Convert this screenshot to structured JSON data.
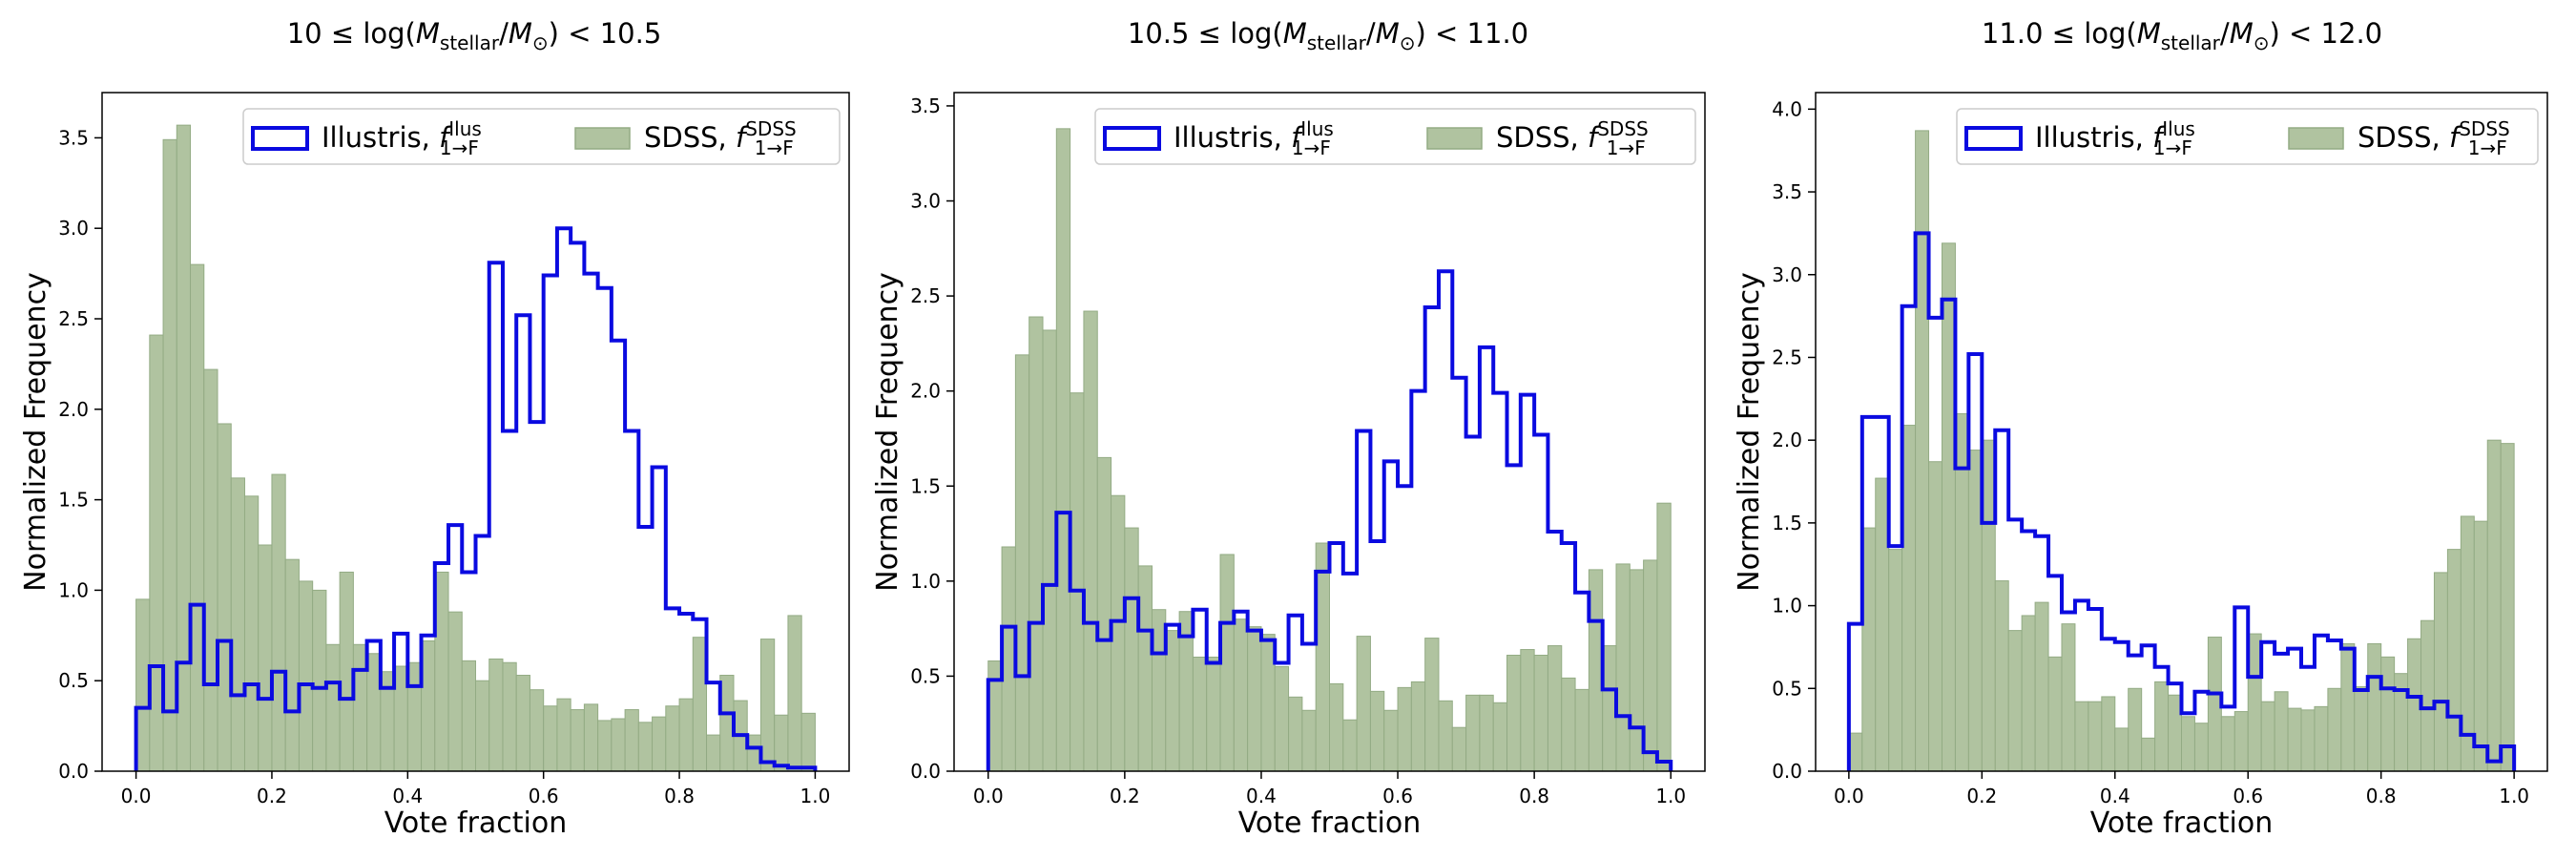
{
  "figure": {
    "xlabel": "Vote fraction",
    "ylabel": "Normalized Frequency"
  },
  "colors": {
    "illustris": "#0a0ae0",
    "sdss_fill": "#b0c3a0",
    "sdss_edge": "#93ab84"
  },
  "chart_data": [
    {
      "type": "histogram",
      "title_parts": {
        "lo": "10",
        "hi": "10.5",
        "inner": "log(M",
        "sub1": "stellar",
        "mid": "/M",
        "sub2": "⊙",
        "close": ")"
      },
      "title": "10 ≤ log(M_stellar/M_⊙) < 10.5",
      "xlabel": "Vote fraction",
      "ylabel": "Normalized Frequency",
      "xlim": [
        -0.05,
        1.05
      ],
      "ylim": [
        0,
        3.75
      ],
      "xticks": [
        "0.0",
        "0.2",
        "0.4",
        "0.6",
        "0.8",
        "1.0"
      ],
      "yticks": [
        "0.0",
        "0.5",
        "1.0",
        "1.5",
        "2.0",
        "2.5",
        "3.0",
        "3.5"
      ],
      "series": [
        {
          "name": "Illustris, f_1→F^Ilus",
          "style": "step",
          "edges": [
            0.0,
            0.02,
            0.04,
            0.06,
            0.08,
            0.1,
            0.12,
            0.14,
            0.16,
            0.18,
            0.2,
            0.22,
            0.24,
            0.26,
            0.28,
            0.3,
            0.32,
            0.34,
            0.36,
            0.38,
            0.4,
            0.42,
            0.44,
            0.46,
            0.48,
            0.5,
            0.52,
            0.54,
            0.56,
            0.58,
            0.6,
            0.62,
            0.64,
            0.66,
            0.68,
            0.7,
            0.72,
            0.74,
            0.76,
            0.78,
            0.8,
            0.82,
            0.84,
            0.86,
            0.88,
            0.9,
            0.92,
            0.94,
            0.96,
            0.98,
            1.0
          ],
          "values": [
            0.35,
            0.58,
            0.33,
            0.6,
            0.92,
            0.48,
            0.72,
            0.42,
            0.48,
            0.4,
            0.55,
            0.33,
            0.48,
            0.46,
            0.49,
            0.4,
            0.56,
            0.72,
            0.46,
            0.76,
            0.47,
            0.75,
            1.15,
            1.36,
            1.1,
            1.3,
            2.81,
            1.88,
            2.52,
            1.93,
            2.74,
            3.0,
            2.92,
            2.75,
            2.67,
            2.38,
            1.88,
            1.35,
            1.68,
            0.9,
            0.87,
            0.84,
            0.49,
            0.32,
            0.2,
            0.13,
            0.05,
            0.03,
            0.02,
            0.02
          ]
        },
        {
          "name": "SDSS, f_1→F^SDSS",
          "style": "filled",
          "edges": [
            0.0,
            0.02,
            0.04,
            0.06,
            0.08,
            0.1,
            0.12,
            0.14,
            0.16,
            0.18,
            0.2,
            0.22,
            0.24,
            0.26,
            0.28,
            0.3,
            0.32,
            0.34,
            0.36,
            0.38,
            0.4,
            0.42,
            0.44,
            0.46,
            0.48,
            0.5,
            0.52,
            0.54,
            0.56,
            0.58,
            0.6,
            0.62,
            0.64,
            0.66,
            0.68,
            0.7,
            0.72,
            0.74,
            0.76,
            0.78,
            0.8,
            0.82,
            0.84,
            0.86,
            0.88,
            0.9,
            0.92,
            0.94,
            0.96,
            0.98,
            1.0
          ],
          "values": [
            0.95,
            2.41,
            3.49,
            3.57,
            2.8,
            2.22,
            1.92,
            1.62,
            1.52,
            1.25,
            1.64,
            1.17,
            1.05,
            1.0,
            0.7,
            1.1,
            0.7,
            0.65,
            0.55,
            0.58,
            0.6,
            0.72,
            1.1,
            0.88,
            0.61,
            0.5,
            0.62,
            0.6,
            0.53,
            0.45,
            0.36,
            0.4,
            0.34,
            0.37,
            0.28,
            0.29,
            0.34,
            0.27,
            0.3,
            0.36,
            0.4,
            0.74,
            0.2,
            0.53,
            0.39,
            0.2,
            0.73,
            0.31,
            0.86,
            0.32
          ]
        }
      ]
    },
    {
      "type": "histogram",
      "title_parts": {
        "lo": "10.5",
        "hi": "11.0",
        "inner": "log(M",
        "sub1": "stellar",
        "mid": "/M",
        "sub2": "⊙",
        "close": ")"
      },
      "title": "10.5 ≤ log(M_stellar/M_⊙) < 11.0",
      "xlabel": "Vote fraction",
      "ylabel": "Normalized Frequency",
      "xlim": [
        -0.05,
        1.05
      ],
      "ylim": [
        0,
        3.57
      ],
      "xticks": [
        "0.0",
        "0.2",
        "0.4",
        "0.6",
        "0.8",
        "1.0"
      ],
      "yticks": [
        "0.0",
        "0.5",
        "1.0",
        "1.5",
        "2.0",
        "2.5",
        "3.0",
        "3.5"
      ],
      "series": [
        {
          "name": "Illustris, f_1→F^Ilus",
          "style": "step",
          "edges": [
            0.0,
            0.02,
            0.04,
            0.06,
            0.08,
            0.1,
            0.12,
            0.14,
            0.16,
            0.18,
            0.2,
            0.22,
            0.24,
            0.26,
            0.28,
            0.3,
            0.32,
            0.34,
            0.36,
            0.38,
            0.4,
            0.42,
            0.44,
            0.46,
            0.48,
            0.5,
            0.52,
            0.54,
            0.56,
            0.58,
            0.6,
            0.62,
            0.64,
            0.66,
            0.68,
            0.7,
            0.72,
            0.74,
            0.76,
            0.78,
            0.8,
            0.82,
            0.84,
            0.86,
            0.88,
            0.9,
            0.92,
            0.94,
            0.96,
            0.98,
            1.0
          ],
          "values": [
            0.48,
            0.76,
            0.5,
            0.78,
            0.98,
            1.36,
            0.95,
            0.78,
            0.69,
            0.79,
            0.91,
            0.74,
            0.62,
            0.77,
            0.71,
            0.85,
            0.57,
            0.78,
            0.84,
            0.74,
            0.69,
            0.57,
            0.82,
            0.67,
            1.05,
            1.2,
            1.04,
            1.79,
            1.21,
            1.63,
            1.5,
            2.0,
            2.44,
            2.63,
            2.07,
            1.76,
            2.23,
            1.99,
            1.61,
            1.98,
            1.77,
            1.26,
            1.2,
            0.94,
            0.79,
            0.43,
            0.29,
            0.23,
            0.1,
            0.05
          ]
        },
        {
          "name": "SDSS, f_1→F^SDSS",
          "style": "filled",
          "edges": [
            0.0,
            0.02,
            0.04,
            0.06,
            0.08,
            0.1,
            0.12,
            0.14,
            0.16,
            0.18,
            0.2,
            0.22,
            0.24,
            0.26,
            0.28,
            0.3,
            0.32,
            0.34,
            0.36,
            0.38,
            0.4,
            0.42,
            0.44,
            0.46,
            0.48,
            0.5,
            0.52,
            0.54,
            0.56,
            0.58,
            0.6,
            0.62,
            0.64,
            0.66,
            0.68,
            0.7,
            0.72,
            0.74,
            0.76,
            0.78,
            0.8,
            0.82,
            0.84,
            0.86,
            0.88,
            0.9,
            0.92,
            0.94,
            0.96,
            0.98,
            1.0
          ],
          "values": [
            0.58,
            1.18,
            2.19,
            2.39,
            2.32,
            3.38,
            1.99,
            2.42,
            1.65,
            1.45,
            1.28,
            1.08,
            0.85,
            0.74,
            0.84,
            0.6,
            0.6,
            1.14,
            0.8,
            0.76,
            0.72,
            0.55,
            0.39,
            0.32,
            1.2,
            0.46,
            0.27,
            0.71,
            0.42,
            0.32,
            0.44,
            0.47,
            0.7,
            0.37,
            0.23,
            0.4,
            0.4,
            0.36,
            0.61,
            0.64,
            0.61,
            0.66,
            0.49,
            0.43,
            1.06,
            0.66,
            1.09,
            1.06,
            1.11,
            1.41
          ]
        }
      ]
    },
    {
      "type": "histogram",
      "title_parts": {
        "lo": "11.0",
        "hi": "12.0",
        "inner": "log(M",
        "sub1": "stellar",
        "mid": "/M",
        "sub2": "⊙",
        "close": ")"
      },
      "title": "11.0 ≤ log(M_stellar/M_⊙) < 12.0",
      "xlabel": "Vote fraction",
      "ylabel": "Normalized Frequency",
      "xlim": [
        -0.05,
        1.05
      ],
      "ylim": [
        0,
        4.1
      ],
      "xticks": [
        "0.0",
        "0.2",
        "0.4",
        "0.6",
        "0.8",
        "1.0"
      ],
      "yticks": [
        "0.0",
        "0.5",
        "1.0",
        "1.5",
        "2.0",
        "2.5",
        "3.0",
        "3.5",
        "4.0"
      ],
      "series": [
        {
          "name": "Illustris, f_1→F^Ilus",
          "style": "step",
          "edges": [
            0.0,
            0.02,
            0.04,
            0.06,
            0.08,
            0.1,
            0.12,
            0.14,
            0.16,
            0.18,
            0.2,
            0.22,
            0.24,
            0.26,
            0.28,
            0.3,
            0.32,
            0.34,
            0.36,
            0.38,
            0.4,
            0.42,
            0.44,
            0.46,
            0.48,
            0.5,
            0.52,
            0.54,
            0.56,
            0.58,
            0.6,
            0.62,
            0.64,
            0.66,
            0.68,
            0.7,
            0.72,
            0.74,
            0.76,
            0.78,
            0.8,
            0.82,
            0.84,
            0.86,
            0.88,
            0.9,
            0.92,
            0.94,
            0.96,
            0.98,
            1.0
          ],
          "values": [
            0.89,
            2.14,
            2.14,
            1.36,
            2.81,
            3.25,
            2.74,
            2.85,
            1.83,
            2.52,
            1.5,
            2.06,
            1.52,
            1.45,
            1.42,
            1.18,
            0.96,
            1.03,
            0.98,
            0.8,
            0.78,
            0.7,
            0.76,
            0.63,
            0.53,
            0.35,
            0.48,
            0.47,
            0.39,
            0.99,
            0.57,
            0.78,
            0.71,
            0.74,
            0.63,
            0.82,
            0.79,
            0.74,
            0.49,
            0.57,
            0.5,
            0.49,
            0.45,
            0.38,
            0.42,
            0.33,
            0.22,
            0.15,
            0.06,
            0.15
          ]
        },
        {
          "name": "SDSS, f_1→F^SDSS",
          "style": "filled",
          "edges": [
            0.0,
            0.02,
            0.04,
            0.06,
            0.08,
            0.1,
            0.12,
            0.14,
            0.16,
            0.18,
            0.2,
            0.22,
            0.24,
            0.26,
            0.28,
            0.3,
            0.32,
            0.34,
            0.36,
            0.38,
            0.4,
            0.42,
            0.44,
            0.46,
            0.48,
            0.5,
            0.52,
            0.54,
            0.56,
            0.58,
            0.6,
            0.62,
            0.64,
            0.66,
            0.68,
            0.7,
            0.72,
            0.74,
            0.76,
            0.78,
            0.8,
            0.82,
            0.84,
            0.86,
            0.88,
            0.9,
            0.92,
            0.94,
            0.96,
            0.98,
            1.0
          ],
          "values": [
            0.23,
            1.47,
            1.77,
            1.34,
            2.09,
            3.87,
            1.87,
            3.19,
            2.16,
            1.94,
            2.0,
            1.15,
            0.85,
            0.94,
            1.02,
            0.69,
            0.89,
            0.42,
            0.42,
            0.45,
            0.26,
            0.5,
            0.2,
            0.54,
            0.46,
            0.33,
            0.29,
            0.81,
            0.33,
            0.36,
            0.83,
            0.42,
            0.48,
            0.38,
            0.37,
            0.39,
            0.5,
            0.77,
            0.51,
            0.77,
            0.69,
            0.59,
            0.8,
            0.91,
            1.2,
            1.34,
            1.54,
            1.51,
            2.0,
            1.98
          ]
        }
      ]
    }
  ],
  "legend": {
    "illustris": {
      "prefix": "Illustris, ",
      "f": "f",
      "sup": "Ilus",
      "sub": "1→F"
    },
    "sdss": {
      "prefix": "SDSS, ",
      "f": "f",
      "sup": "SDSS",
      "sub": "1→F"
    }
  }
}
